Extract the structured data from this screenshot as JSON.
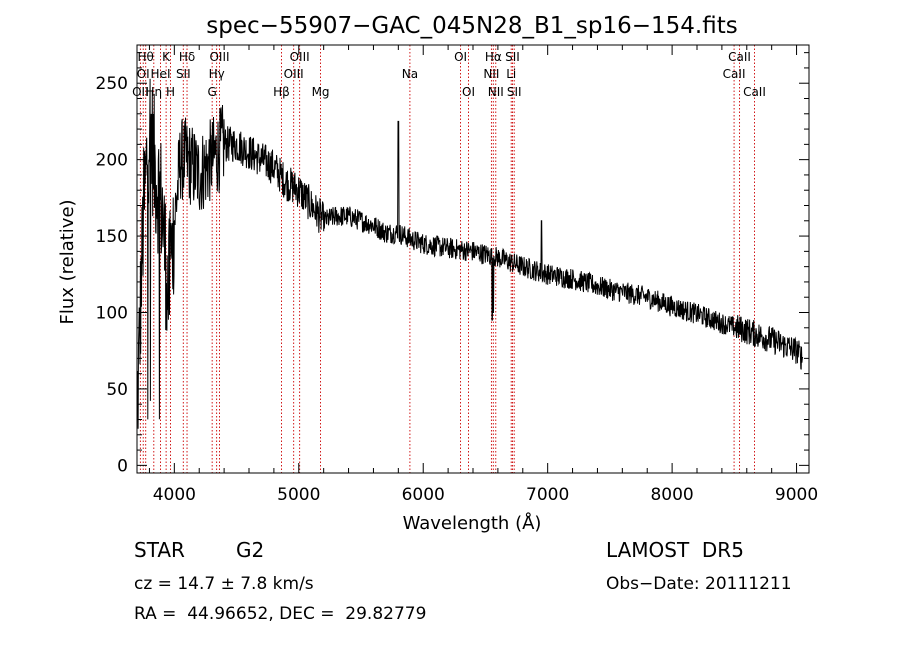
{
  "chart_data": {
    "type": "line",
    "title": "spec−55907−GAC_045N28_B1_sp16−154.fits",
    "xlabel": "Wavelength (Å)",
    "ylabel": "Flux (relative)",
    "xlim": [
      3700,
      9100
    ],
    "ylim": [
      -5,
      275
    ],
    "xticks": [
      4000,
      5000,
      6000,
      7000,
      8000,
      9000
    ],
    "yticks": [
      0,
      50,
      100,
      150,
      200,
      250
    ],
    "grid": false,
    "line_color": "#000000",
    "marker_color": "#cc0000",
    "continuum": {
      "x": [
        3700,
        3750,
        3800,
        3850,
        3900,
        3950,
        4000,
        4050,
        4100,
        4150,
        4200,
        4300,
        4400,
        4500,
        4600,
        4700,
        4800,
        4900,
        5000,
        5100,
        5200,
        5300,
        5400,
        5500,
        5600,
        5700,
        5800,
        5900,
        6000,
        6200,
        6400,
        6600,
        6800,
        7000,
        7200,
        7500,
        7800,
        8000,
        8200,
        8400,
        8600,
        8800,
        9000,
        9050
      ],
      "y": [
        30,
        160,
        225,
        190,
        170,
        110,
        160,
        200,
        200,
        195,
        190,
        200,
        210,
        210,
        205,
        200,
        195,
        185,
        180,
        170,
        160,
        163,
        163,
        160,
        157,
        152,
        152,
        148,
        145,
        142,
        140,
        136,
        130,
        125,
        122,
        115,
        110,
        104,
        99,
        93,
        88,
        82,
        75,
        70
      ]
    },
    "features": [
      {
        "x": 5800,
        "y": 225
      },
      {
        "x": 6555,
        "y": 95
      },
      {
        "x": 6563,
        "y": 100
      },
      {
        "x": 6950,
        "y": 160
      }
    ],
    "lines": [
      {
        "wave": 3727,
        "label": "OII",
        "row": 3
      },
      {
        "wave": 3750,
        "label": "OI",
        "row": 2
      },
      {
        "wave": 3770,
        "label": "Hθ",
        "row": 1
      },
      {
        "wave": 3835,
        "label": "Hη",
        "row": 3
      },
      {
        "wave": 3889,
        "label": "HeI",
        "row": 2
      },
      {
        "wave": 3934,
        "label": "K",
        "row": 1
      },
      {
        "wave": 3969,
        "label": "H",
        "row": 3
      },
      {
        "wave": 4072,
        "label": "SII",
        "row": 2
      },
      {
        "wave": 4102,
        "label": "Hδ",
        "row": 1
      },
      {
        "wave": 4304,
        "label": "G",
        "row": 3
      },
      {
        "wave": 4340,
        "label": "Hγ",
        "row": 2
      },
      {
        "wave": 4363,
        "label": "OIII",
        "row": 1
      },
      {
        "wave": 4861,
        "label": "Hβ",
        "row": 3
      },
      {
        "wave": 4959,
        "label": "OIII",
        "row": 2
      },
      {
        "wave": 5007,
        "label": "OIII",
        "row": 1
      },
      {
        "wave": 5175,
        "label": "Mg",
        "row": 3
      },
      {
        "wave": 5893,
        "label": "Na",
        "row": 2
      },
      {
        "wave": 6300,
        "label": "OI",
        "row": 1
      },
      {
        "wave": 6364,
        "label": "OI",
        "row": 3
      },
      {
        "wave": 6548,
        "label": "NII",
        "row": 2
      },
      {
        "wave": 6563,
        "label": "Hα",
        "row": 1
      },
      {
        "wave": 6583,
        "label": "NII",
        "row": 3
      },
      {
        "wave": 6707,
        "label": "Li",
        "row": 2
      },
      {
        "wave": 6717,
        "label": "SII",
        "row": 1
      },
      {
        "wave": 6731,
        "label": "SII",
        "row": 3
      },
      {
        "wave": 8498,
        "label": "CaII",
        "row": 2
      },
      {
        "wave": 8542,
        "label": "CaII",
        "row": 1
      },
      {
        "wave": 8662,
        "label": "CaII",
        "row": 3
      }
    ]
  },
  "footer": {
    "object_class": "STAR",
    "spectral_type": "G2",
    "survey": "LAMOST  DR5",
    "cz": "cz = 14.7 ± 7.8 km/s",
    "obs_date": "Obs−Date: 20111211",
    "radec": "RA =  44.96652, DEC =  29.82779"
  }
}
